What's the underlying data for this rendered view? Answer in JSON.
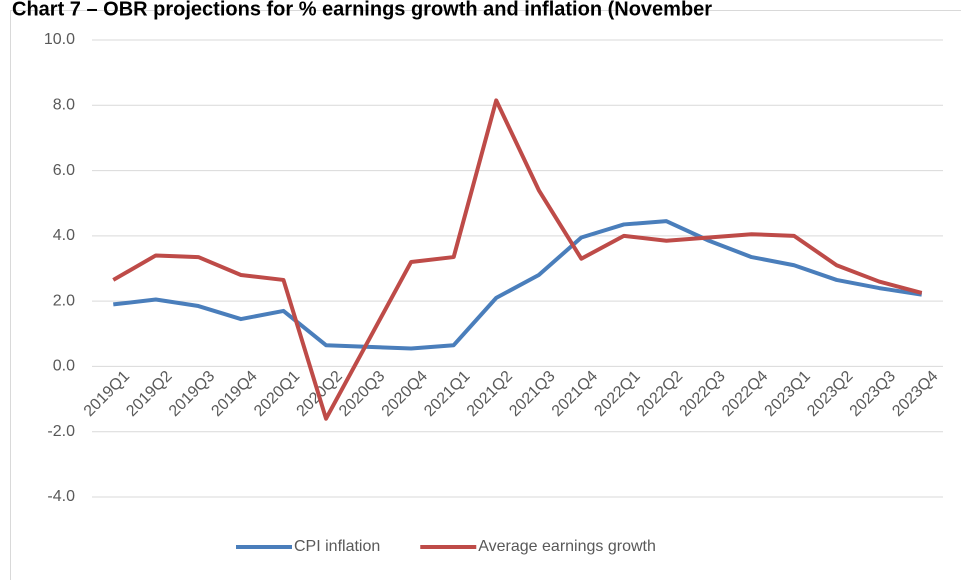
{
  "chart_data": {
    "type": "line",
    "title": "Chart 7 – OBR projections for % earnings growth and inflation (November",
    "categories": [
      "2019Q1",
      "2019Q2",
      "2019Q3",
      "2019Q4",
      "2020Q1",
      "2020Q2",
      "2020Q3",
      "2020Q4",
      "2021Q1",
      "2021Q2",
      "2021Q3",
      "2021Q4",
      "2022Q1",
      "2022Q2",
      "2022Q3",
      "2022Q4",
      "2023Q1",
      "2023Q2",
      "2023Q3",
      "2023Q4"
    ],
    "series": [
      {
        "name": "CPI inflation",
        "color": "#4a7ebb",
        "values": [
          1.9,
          2.05,
          1.85,
          1.45,
          1.7,
          0.65,
          0.6,
          0.55,
          0.65,
          2.1,
          2.8,
          3.95,
          4.35,
          4.45,
          3.85,
          3.35,
          3.1,
          2.65,
          2.4,
          2.2
        ]
      },
      {
        "name": "Average earnings growth",
        "color": "#be4b48",
        "values": [
          2.65,
          3.4,
          3.35,
          2.8,
          2.65,
          -1.6,
          0.8,
          3.2,
          3.35,
          8.15,
          5.4,
          3.3,
          4.0,
          3.85,
          3.95,
          4.05,
          4.0,
          3.1,
          2.6,
          2.25
        ]
      }
    ],
    "ylim": [
      -4,
      10
    ],
    "yticks": [
      {
        "value": -4,
        "label": "-4.0"
      },
      {
        "value": -2,
        "label": "-2.0"
      },
      {
        "value": 0,
        "label": "0.0"
      },
      {
        "value": 2,
        "label": "2.0"
      },
      {
        "value": 4,
        "label": "4.0"
      },
      {
        "value": 6,
        "label": "6.0"
      },
      {
        "value": 8,
        "label": "8.0"
      },
      {
        "value": 10,
        "label": "10.0"
      }
    ],
    "grid": true,
    "legend": "bottom"
  }
}
